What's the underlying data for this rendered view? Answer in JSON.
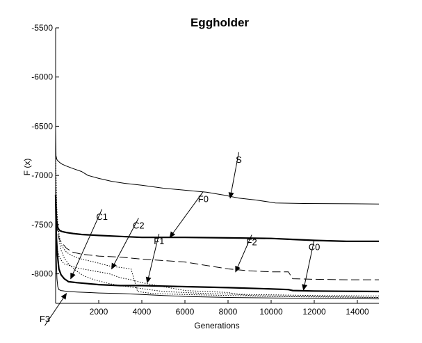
{
  "chart_data": {
    "type": "line",
    "title": "Eggholder",
    "xlabel": "Generations",
    "ylabel": "F (x)",
    "xlim": [
      0,
      15000
    ],
    "ylim": [
      -8300,
      -5500
    ],
    "xticks": [
      2000,
      4000,
      6000,
      8000,
      10000,
      12000,
      14000
    ],
    "yticks": [
      -5500,
      -6000,
      -6500,
      -7000,
      -7500,
      -8000
    ],
    "grid": false,
    "series": [
      {
        "name": "S",
        "style": "solid",
        "width": 1,
        "x": [
          0,
          20,
          60,
          120,
          200,
          300,
          500,
          800,
          1200,
          1500,
          2000,
          2600,
          3200,
          4000,
          5000,
          6000,
          7000,
          7800,
          8500,
          9300,
          10200,
          11500,
          13000,
          15000
        ],
        "y": [
          -6520,
          -6800,
          -6840,
          -6855,
          -6870,
          -6885,
          -6905,
          -6930,
          -6960,
          -7000,
          -7030,
          -7060,
          -7080,
          -7100,
          -7130,
          -7150,
          -7170,
          -7200,
          -7230,
          -7250,
          -7280,
          -7285,
          -7287,
          -7290
        ]
      },
      {
        "name": "F0",
        "style": "solid",
        "width": 2.2,
        "x": [
          0,
          40,
          100,
          180,
          300,
          500,
          800,
          1200,
          2000,
          3000,
          4000,
          6000,
          8000,
          10000,
          11000,
          12000,
          13500,
          15000
        ],
        "y": [
          -7200,
          -7450,
          -7530,
          -7560,
          -7570,
          -7580,
          -7590,
          -7600,
          -7610,
          -7620,
          -7630,
          -7630,
          -7635,
          -7640,
          -7650,
          -7660,
          -7670,
          -7670
        ]
      },
      {
        "name": "F2",
        "style": "dashed",
        "width": 1,
        "x": [
          0,
          20,
          50,
          100,
          200,
          350,
          500,
          800,
          1200,
          2000,
          3000,
          4000,
          6000,
          8000,
          9000,
          10000,
          10800,
          11000,
          12000,
          13500,
          15000
        ],
        "y": [
          -7000,
          -7400,
          -7520,
          -7600,
          -7660,
          -7700,
          -7740,
          -7780,
          -7800,
          -7820,
          -7830,
          -7850,
          -7880,
          -7950,
          -7970,
          -7980,
          -7980,
          -8050,
          -8055,
          -8060,
          -8060
        ]
      },
      {
        "name": "C0",
        "style": "solid",
        "width": 2.2,
        "x": [
          0,
          30,
          80,
          150,
          250,
          400,
          600,
          1000,
          1500,
          2000,
          3000,
          4000,
          6000,
          8000,
          9500,
          10800,
          11000,
          12000,
          13500,
          15000
        ],
        "y": [
          -7200,
          -7600,
          -7800,
          -7950,
          -8010,
          -8050,
          -8080,
          -8090,
          -8100,
          -8110,
          -8120,
          -8120,
          -8130,
          -8140,
          -8150,
          -8160,
          -8170,
          -8175,
          -8178,
          -8180
        ]
      },
      {
        "name": "F1",
        "style": "dotted",
        "width": 1,
        "x": [
          0,
          30,
          80,
          150,
          250,
          400,
          700,
          1000,
          1500,
          2000,
          2500,
          3000,
          3500,
          4000,
          5000,
          6000,
          7000,
          8000,
          8500,
          9000,
          10000,
          12000,
          15000
        ],
        "y": [
          -7300,
          -7600,
          -7750,
          -7820,
          -7860,
          -7900,
          -7920,
          -7940,
          -7960,
          -7980,
          -8000,
          -8040,
          -8060,
          -8090,
          -8130,
          -8170,
          -8180,
          -8190,
          -8210,
          -8220,
          -8225,
          -8230,
          -8240
        ]
      },
      {
        "name": "C1",
        "style": "dotted",
        "width": 1,
        "x": [
          0,
          20,
          50,
          100,
          150,
          250,
          400,
          600,
          900,
          1300,
          1800,
          2500,
          3000,
          4000,
          5000,
          7000,
          9000,
          12000,
          15000
        ],
        "y": [
          -6750,
          -7100,
          -7350,
          -7550,
          -7650,
          -7760,
          -7840,
          -7900,
          -7960,
          -8020,
          -8060,
          -8100,
          -8120,
          -8150,
          -8180,
          -8200,
          -8210,
          -8220,
          -8225
        ]
      },
      {
        "name": "C2",
        "style": "dotted",
        "width": 1,
        "x": [
          0,
          20,
          50,
          100,
          200,
          300,
          500,
          800,
          1200,
          1800,
          2500,
          3500,
          3800,
          4500,
          6000,
          8000,
          10000,
          12000,
          15000
        ],
        "y": [
          -6650,
          -7000,
          -7300,
          -7500,
          -7650,
          -7720,
          -7780,
          -7820,
          -7850,
          -7880,
          -7920,
          -7950,
          -8180,
          -8200,
          -8210,
          -8220,
          -8230,
          -8235,
          -8240
        ]
      },
      {
        "name": "F3",
        "style": "solid",
        "width": 1,
        "x": [
          0,
          30,
          60,
          100,
          150,
          250,
          400,
          600,
          1000,
          1500,
          2000,
          3000,
          4000,
          5000,
          6000,
          8000,
          10000,
          12000,
          15000
        ],
        "y": [
          -7300,
          -7800,
          -8050,
          -8130,
          -8160,
          -8170,
          -8175,
          -8180,
          -8185,
          -8190,
          -8195,
          -8200,
          -8210,
          -8220,
          -8230,
          -8240,
          -8245,
          -8250,
          -8255
        ]
      }
    ],
    "annotations": [
      {
        "label": "S",
        "tx": 8500,
        "ty": -6870,
        "ax": 8100,
        "ay": -7230
      },
      {
        "label": "F0",
        "tx": 6850,
        "ty": -7270,
        "ax": 5300,
        "ay": -7630
      },
      {
        "label": "C1",
        "tx": 2150,
        "ty": -7450,
        "ax": 700,
        "ay": -8050
      },
      {
        "label": "C2",
        "tx": 3850,
        "ty": -7540,
        "ax": 2600,
        "ay": -7950
      },
      {
        "label": "F1",
        "tx": 4800,
        "ty": -7700,
        "ax": 4250,
        "ay": -8090
      },
      {
        "label": "F2",
        "tx": 9100,
        "ty": -7710,
        "ax": 8350,
        "ay": -7980
      },
      {
        "label": "C0",
        "tx": 12000,
        "ty": -7760,
        "ax": 11500,
        "ay": -8165
      },
      {
        "label": "F3",
        "tx": -500,
        "ty": -8490,
        "ax": 500,
        "ay": -8200
      }
    ]
  }
}
